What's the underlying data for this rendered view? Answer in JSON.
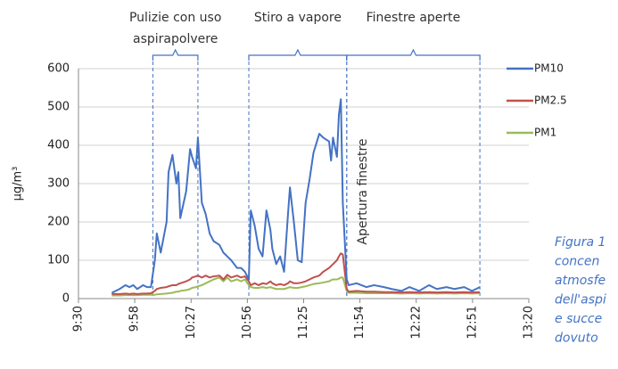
{
  "chart_data": {
    "type": "line",
    "y_label": "µg/m³",
    "x": [
      587,
      591,
      594,
      596,
      598,
      600,
      603,
      605,
      607,
      609,
      610,
      612,
      615,
      616,
      618,
      620,
      621,
      622,
      625,
      627,
      628,
      630,
      631,
      633,
      635,
      637,
      639,
      642,
      644,
      646,
      648,
      651,
      653,
      655,
      657,
      658,
      660,
      662,
      664,
      666,
      668,
      669,
      671,
      673,
      675,
      677,
      678,
      680,
      682,
      684,
      686,
      688,
      690,
      693,
      695,
      698,
      699,
      700,
      702,
      703,
      704,
      705,
      707,
      708,
      712,
      717,
      721,
      726,
      730,
      735,
      739,
      744,
      749,
      753,
      758,
      762,
      767,
      771,
      775
    ],
    "series": [
      {
        "name": "PM10",
        "color": "#4472c4",
        "values": [
          15,
          25,
          35,
          30,
          35,
          25,
          35,
          30,
          30,
          100,
          170,
          120,
          200,
          330,
          375,
          300,
          330,
          210,
          280,
          390,
          370,
          340,
          420,
          250,
          220,
          170,
          150,
          140,
          120,
          110,
          100,
          80,
          80,
          70,
          50,
          230,
          190,
          130,
          110,
          230,
          180,
          130,
          90,
          110,
          70,
          220,
          290,
          200,
          100,
          95,
          250,
          310,
          380,
          430,
          420,
          410,
          360,
          420,
          370,
          480,
          520,
          250,
          50,
          35,
          40,
          30,
          35,
          30,
          25,
          20,
          30,
          20,
          35,
          25,
          30,
          25,
          30,
          20,
          30
        ]
      },
      {
        "name": "PM2.5",
        "color": "#c0504d",
        "values": [
          12,
          12,
          13,
          12,
          13,
          12,
          13,
          13,
          14,
          20,
          25,
          28,
          30,
          32,
          35,
          35,
          38,
          40,
          45,
          50,
          55,
          58,
          60,
          55,
          60,
          55,
          58,
          60,
          50,
          62,
          55,
          60,
          55,
          58,
          45,
          35,
          40,
          35,
          40,
          38,
          45,
          40,
          35,
          38,
          35,
          40,
          45,
          40,
          40,
          42,
          45,
          50,
          55,
          60,
          70,
          80,
          85,
          90,
          100,
          110,
          118,
          115,
          25,
          18,
          20,
          18,
          18,
          17,
          17,
          16,
          17,
          16,
          17,
          16,
          17,
          16,
          17,
          16,
          17
        ]
      },
      {
        "name": "PM1",
        "color": "#9bbb59",
        "values": [
          8,
          8,
          9,
          9,
          9,
          9,
          10,
          10,
          10,
          10,
          11,
          12,
          13,
          14,
          15,
          18,
          18,
          20,
          22,
          25,
          28,
          30,
          32,
          35,
          40,
          45,
          50,
          55,
          45,
          55,
          45,
          50,
          45,
          50,
          35,
          30,
          28,
          28,
          30,
          28,
          30,
          28,
          25,
          25,
          25,
          28,
          30,
          28,
          28,
          30,
          32,
          35,
          38,
          40,
          42,
          45,
          48,
          50,
          50,
          52,
          55,
          55,
          20,
          15,
          15,
          14,
          14,
          14,
          14,
          13,
          14,
          13,
          14,
          13,
          14,
          13,
          14,
          13,
          14
        ]
      }
    ],
    "xlim": [
      570,
      800
    ],
    "xticks": [
      {
        "value": 570,
        "label": "9:30"
      },
      {
        "value": 598.75,
        "label": "9:58"
      },
      {
        "value": 627.5,
        "label": "10:27"
      },
      {
        "value": 656.25,
        "label": "10:56"
      },
      {
        "value": 685,
        "label": "11:25"
      },
      {
        "value": 713.75,
        "label": "11:54"
      },
      {
        "value": 742.5,
        "label": "12:22"
      },
      {
        "value": 771.25,
        "label": "12:51"
      },
      {
        "value": 800,
        "label": "13:20"
      }
    ],
    "ylim": [
      0,
      600
    ],
    "yticks": [
      0,
      100,
      200,
      300,
      400,
      500,
      600
    ],
    "grid": true,
    "legend": "right",
    "annotations": [
      {
        "lines": [
          "Pulizie con uso",
          "aspirapolvere"
        ],
        "x": [
          608,
          631
        ]
      },
      {
        "lines": [
          "Stiro a vapore"
        ],
        "x": [
          657,
          707
        ]
      },
      {
        "lines": [
          "Finestre aperte"
        ],
        "x": [
          707,
          775
        ]
      }
    ],
    "marker_label": {
      "text": "Apertura finestre",
      "x": 707
    },
    "caption": [
      "Figura 1",
      "concen",
      "atmosfe",
      "dell'aspi",
      "e succe",
      "dovuto"
    ]
  }
}
